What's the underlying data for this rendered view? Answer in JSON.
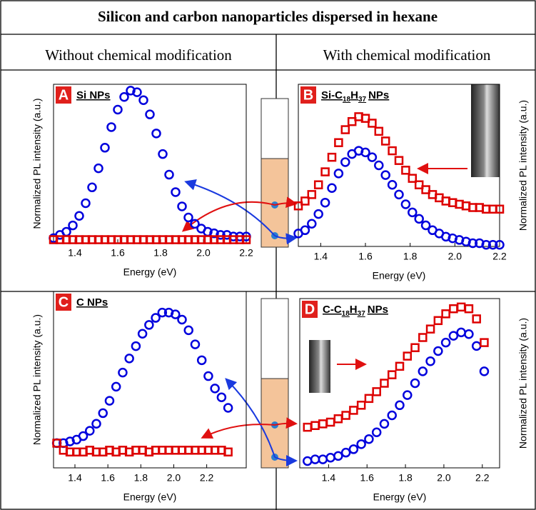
{
  "title": "Silicon and carbon nanoparticles dispersed in hexane",
  "headers": [
    "Without chemical modification",
    "With chemical modification"
  ],
  "chart_data": [
    {
      "type": "scatter",
      "panel": "A",
      "label": [
        "Si NPs"
      ],
      "xlabel": "Energy (eV)",
      "ylabel": "Normalized PL intensity (a.u.)",
      "xlim": [
        1.3,
        2.2
      ],
      "xticks": [
        1.4,
        1.6,
        1.8,
        {
          "value": 2.0,
          "label": "2.0"
        },
        2.2
      ],
      "ylim": [
        0,
        1
      ],
      "x": [
        1.3,
        1.33,
        1.36,
        1.39,
        1.42,
        1.45,
        1.48,
        1.51,
        1.54,
        1.57,
        1.6,
        1.63,
        1.66,
        1.69,
        1.72,
        1.75,
        1.78,
        1.81,
        1.84,
        1.87,
        1.9,
        1.93,
        1.96,
        1.99,
        2.02,
        2.05,
        2.08,
        2.11,
        2.14,
        2.17,
        2.2
      ],
      "series": [
        {
          "color": "#0000dd",
          "marker": "circle",
          "values": [
            0.03,
            0.05,
            0.07,
            0.11,
            0.17,
            0.25,
            0.35,
            0.47,
            0.6,
            0.73,
            0.84,
            0.92,
            0.96,
            0.95,
            0.9,
            0.81,
            0.69,
            0.56,
            0.43,
            0.32,
            0.23,
            0.16,
            0.12,
            0.09,
            0.07,
            0.06,
            0.05,
            0.05,
            0.04,
            0.04,
            0.04
          ]
        },
        {
          "color": "#dd0000",
          "marker": "square",
          "values": [
            0.02,
            0.02,
            0.02,
            0.02,
            0.02,
            0.02,
            0.02,
            0.02,
            0.02,
            0.02,
            0.02,
            0.02,
            0.02,
            0.02,
            0.02,
            0.02,
            0.02,
            0.02,
            0.02,
            0.02,
            0.02,
            0.02,
            0.02,
            0.02,
            0.02,
            0.02,
            0.02,
            0.02,
            0.02,
            0.02,
            0.02
          ]
        }
      ]
    },
    {
      "type": "scatter",
      "panel": "B",
      "label": [
        "Si-C",
        "18",
        "H",
        "37",
        "NPs"
      ],
      "xlabel": "Energy (eV)",
      "ylabel": "Normalized PL intensity (a.u.)",
      "xlim": [
        1.3,
        2.2
      ],
      "xticks": [
        1.4,
        1.6,
        1.8,
        {
          "value": 2.0,
          "label": "2.0"
        },
        2.2
      ],
      "ylim": [
        0,
        1
      ],
      "x": [
        1.3,
        1.33,
        1.36,
        1.39,
        1.42,
        1.45,
        1.48,
        1.51,
        1.54,
        1.57,
        1.6,
        1.63,
        1.66,
        1.69,
        1.72,
        1.75,
        1.78,
        1.81,
        1.84,
        1.87,
        1.9,
        1.93,
        1.96,
        1.99,
        2.02,
        2.05,
        2.08,
        2.11,
        2.14,
        2.17,
        2.2
      ],
      "series": [
        {
          "color": "#0000dd",
          "marker": "circle",
          "values": [
            0.08,
            0.1,
            0.14,
            0.2,
            0.27,
            0.36,
            0.45,
            0.52,
            0.57,
            0.59,
            0.58,
            0.55,
            0.5,
            0.44,
            0.38,
            0.32,
            0.26,
            0.21,
            0.17,
            0.13,
            0.1,
            0.08,
            0.06,
            0.05,
            0.04,
            0.03,
            0.02,
            0.02,
            0.01,
            0.01,
            0.01
          ]
        },
        {
          "color": "#dd0000",
          "marker": "square",
          "values": [
            0.25,
            0.28,
            0.32,
            0.38,
            0.46,
            0.55,
            0.64,
            0.72,
            0.77,
            0.8,
            0.79,
            0.76,
            0.71,
            0.65,
            0.59,
            0.53,
            0.47,
            0.42,
            0.38,
            0.35,
            0.32,
            0.3,
            0.28,
            0.27,
            0.26,
            0.25,
            0.24,
            0.24,
            0.23,
            0.23,
            0.23
          ]
        }
      ]
    },
    {
      "type": "scatter",
      "panel": "C",
      "label": [
        "C NPs"
      ],
      "xlabel": "Energy (eV)",
      "ylabel": "Normalized PL intensity (a.u.)",
      "xlim": [
        1.27,
        2.44
      ],
      "xticks": [
        1.4,
        1.6,
        1.8,
        {
          "value": 2.0,
          "label": "2.0"
        },
        2.2
      ],
      "ylim": [
        0,
        1
      ],
      "x": [
        1.29,
        1.33,
        1.37,
        1.41,
        1.45,
        1.49,
        1.53,
        1.57,
        1.61,
        1.65,
        1.69,
        1.73,
        1.77,
        1.81,
        1.85,
        1.89,
        1.93,
        1.97,
        2.01,
        2.05,
        2.09,
        2.13,
        2.17,
        2.21,
        2.25,
        2.29,
        2.33
      ],
      "series": [
        {
          "color": "#0000dd",
          "marker": "circle",
          "values": [
            0.14,
            0.14,
            0.15,
            0.16,
            0.18,
            0.21,
            0.25,
            0.31,
            0.38,
            0.46,
            0.54,
            0.62,
            0.69,
            0.76,
            0.81,
            0.85,
            0.88,
            0.88,
            0.87,
            0.84,
            0.78,
            0.7,
            0.61,
            0.52,
            0.45,
            0.4,
            0.34
          ]
        },
        {
          "color": "#dd0000",
          "marker": "square",
          "values": [
            0.14,
            0.1,
            0.09,
            0.09,
            0.09,
            0.1,
            0.09,
            0.09,
            0.1,
            0.09,
            0.1,
            0.09,
            0.1,
            0.1,
            0.09,
            0.1,
            0.1,
            0.1,
            0.1,
            0.1,
            0.1,
            0.1,
            0.1,
            0.1,
            0.1,
            0.1,
            0.09
          ]
        }
      ]
    },
    {
      "type": "scatter",
      "panel": "D",
      "label": [
        "C-C",
        "18",
        "H",
        "37",
        "NPs"
      ],
      "xlabel": "Energy (eV)",
      "ylabel": "Normalized PL intensity (a.u.)",
      "xlim": [
        1.25,
        2.29
      ],
      "xticks": [
        1.4,
        1.6,
        1.8,
        {
          "value": 2.0,
          "label": "2.0"
        },
        2.2
      ],
      "ylim": [
        0,
        1
      ],
      "x": [
        1.29,
        1.33,
        1.37,
        1.41,
        1.45,
        1.49,
        1.53,
        1.57,
        1.61,
        1.65,
        1.69,
        1.73,
        1.77,
        1.81,
        1.85,
        1.89,
        1.93,
        1.97,
        2.01,
        2.05,
        2.09,
        2.13,
        2.17,
        2.21
      ],
      "series": [
        {
          "color": "#0000dd",
          "marker": "circle",
          "values": [
            0.04,
            0.05,
            0.05,
            0.06,
            0.07,
            0.09,
            0.11,
            0.14,
            0.17,
            0.21,
            0.26,
            0.31,
            0.37,
            0.43,
            0.5,
            0.57,
            0.63,
            0.69,
            0.74,
            0.78,
            0.8,
            0.79,
            0.72,
            0.57
          ]
        },
        {
          "color": "#dd0000",
          "marker": "square",
          "values": [
            0.24,
            0.25,
            0.26,
            0.27,
            0.29,
            0.31,
            0.34,
            0.37,
            0.41,
            0.45,
            0.5,
            0.55,
            0.6,
            0.66,
            0.71,
            0.77,
            0.82,
            0.87,
            0.91,
            0.94,
            0.95,
            0.94,
            0.88,
            0.74
          ]
        }
      ]
    }
  ]
}
